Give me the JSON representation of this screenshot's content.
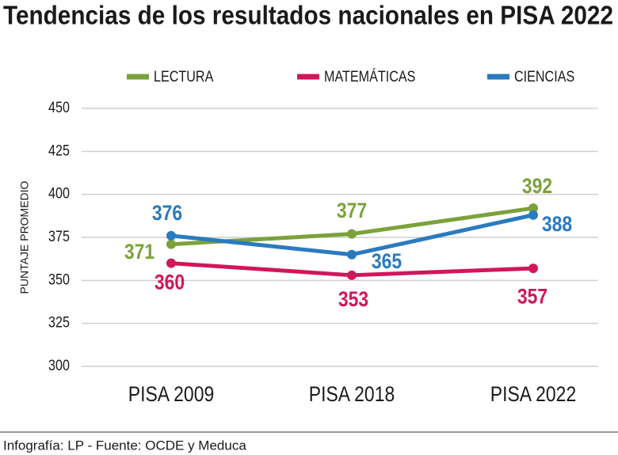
{
  "chart_data": {
    "type": "line",
    "title": "Tendencias de los resultados nacionales en PISA 2022",
    "ylabel": "PUNTAJE PROMEDIO",
    "source": "Infografía: LP - Fuente: OCDE y Meduca",
    "categories": [
      "PISA 2009",
      "PISA 2018",
      "PISA 2022"
    ],
    "series": [
      {
        "name": "LECTURA",
        "color": "#7ba23a",
        "values": [
          371,
          377,
          392
        ]
      },
      {
        "name": "MATEMÁTICAS",
        "color": "#d0175a",
        "values": [
          360,
          353,
          357
        ]
      },
      {
        "name": "CIENCIAS",
        "color": "#2a7abf",
        "values": [
          376,
          365,
          388
        ]
      }
    ],
    "ylim": [
      300,
      450
    ],
    "yticks": [
      300,
      325,
      350,
      375,
      400,
      425,
      450
    ],
    "grid": true
  }
}
